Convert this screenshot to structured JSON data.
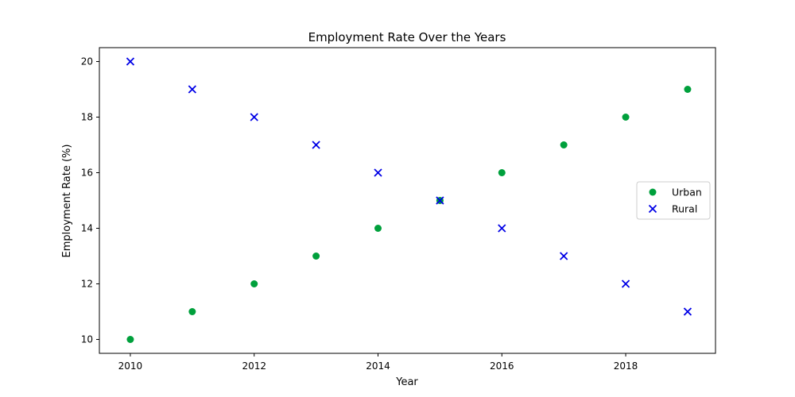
{
  "chart_data": {
    "type": "scatter",
    "title": "Employment Rate Over the Years",
    "xlabel": "Year",
    "ylabel": "Employment Rate (%)",
    "xlim": [
      2009.5,
      2019.45
    ],
    "ylim": [
      9.5,
      20.5
    ],
    "xticks": [
      2010,
      2012,
      2014,
      2016,
      2018
    ],
    "yticks": [
      10,
      12,
      14,
      16,
      18,
      20
    ],
    "grid": false,
    "legend_position": "center-right",
    "x": [
      2010,
      2011,
      2012,
      2013,
      2014,
      2015,
      2016,
      2017,
      2018,
      2019
    ],
    "series": [
      {
        "name": "Urban",
        "marker": "circle",
        "color": "#00a03c",
        "values": [
          10,
          11,
          12,
          13,
          14,
          15,
          16,
          17,
          18,
          19
        ]
      },
      {
        "name": "Rural",
        "marker": "x",
        "color": "#0000e6",
        "values": [
          20,
          19,
          18,
          17,
          16,
          15,
          14,
          13,
          12,
          11
        ]
      }
    ]
  }
}
